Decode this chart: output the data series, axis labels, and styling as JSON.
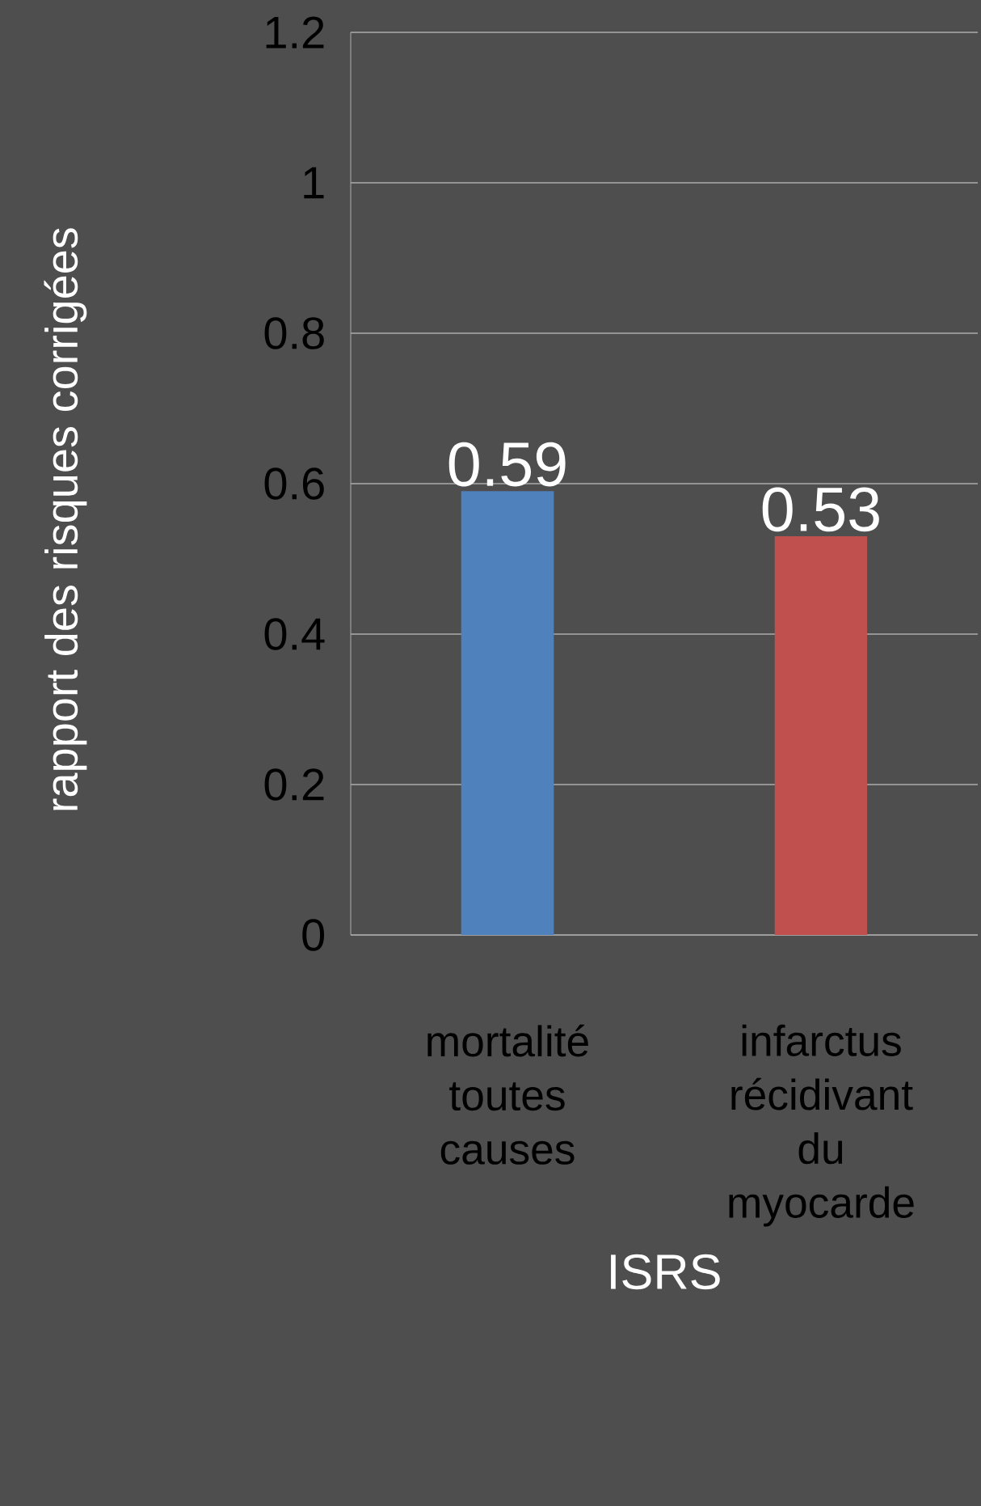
{
  "chart_data": {
    "type": "bar",
    "xlabel": "ISRS",
    "ylabel": "rapport des risques corrigées",
    "categories": [
      "mortalité toutes causes",
      "infarctus récidivant du myocarde"
    ],
    "values": [
      0.59,
      0.53
    ],
    "colors": [
      "#4f81bd",
      "#c0504d"
    ],
    "ylim": [
      0,
      1.2
    ],
    "yticks": [
      0,
      0.2,
      0.4,
      0.6,
      0.8,
      1,
      1.2
    ],
    "grid": "y",
    "data_labels": true
  }
}
